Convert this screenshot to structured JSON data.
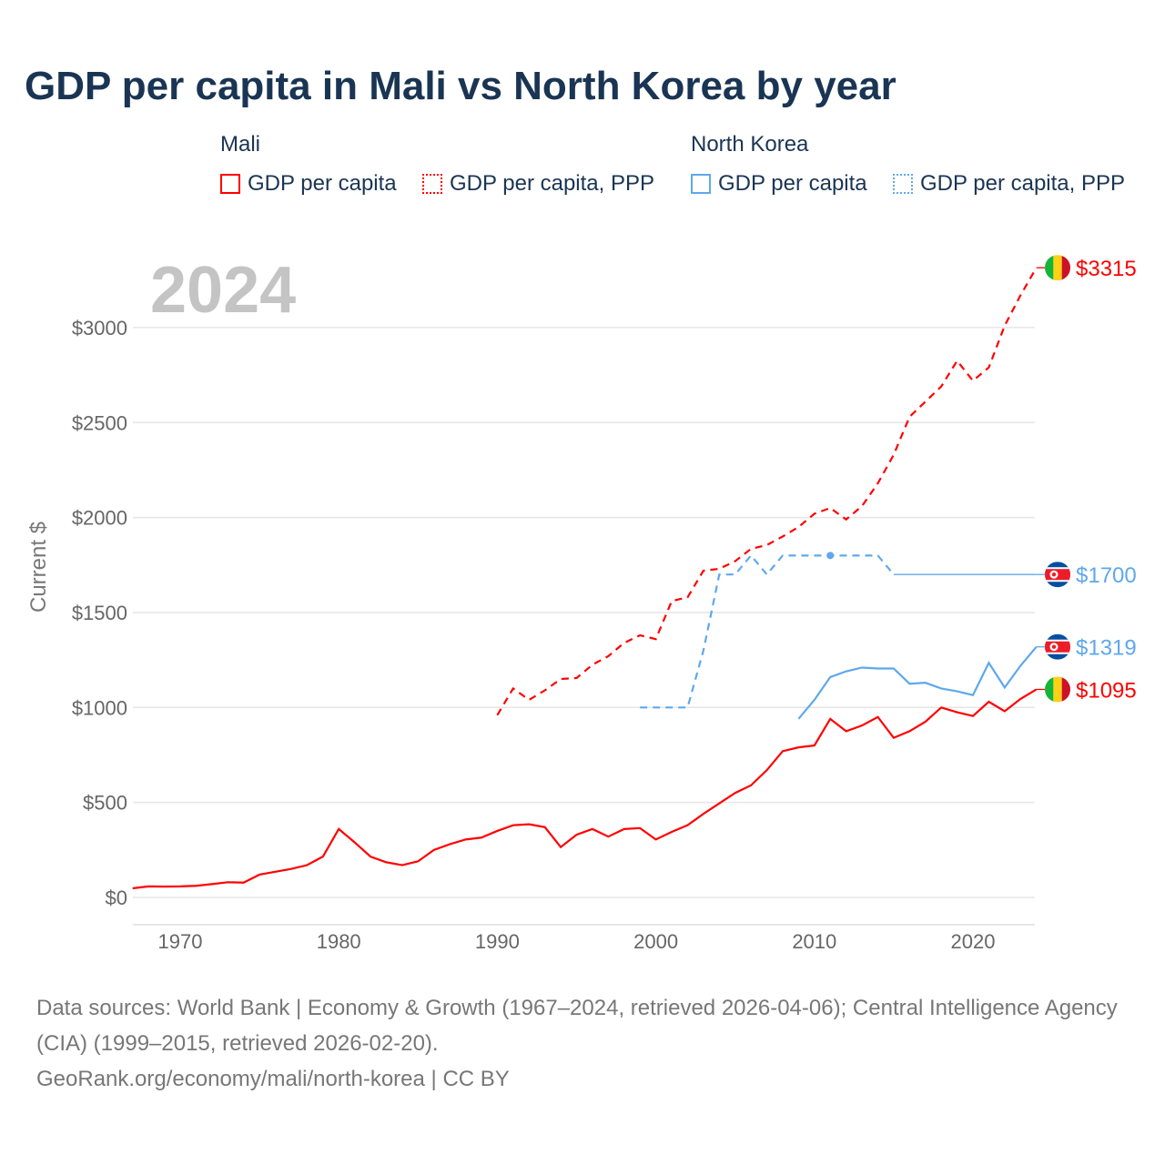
{
  "title": "GDP per capita in Mali vs North Korea by year",
  "legend": {
    "groups": [
      {
        "name": "Mali",
        "items": [
          "GDP per capita",
          "GDP per capita, PPP"
        ],
        "color": "#ff0000"
      },
      {
        "name": "North Korea",
        "items": [
          "GDP per capita",
          "GDP per capita, PPP"
        ],
        "color": "#5ea8ec"
      }
    ]
  },
  "chart_data": {
    "type": "line",
    "title": "GDP per capita in Mali vs North Korea by year",
    "year_label": "2024",
    "ylabel": "Current $",
    "xlim": [
      1967,
      2024
    ],
    "ylim": [
      -130,
      3400
    ],
    "x_ticks": [
      1970,
      1980,
      1990,
      2000,
      2010,
      2020
    ],
    "y_ticks": [
      {
        "v": 0,
        "label": "$0"
      },
      {
        "v": 500,
        "label": "$500"
      },
      {
        "v": 1000,
        "label": "$1000"
      },
      {
        "v": 1500,
        "label": "$1500"
      },
      {
        "v": 2000,
        "label": "$2000"
      },
      {
        "v": 2500,
        "label": "$2500"
      },
      {
        "v": 3000,
        "label": "$3000"
      }
    ],
    "series": [
      {
        "name": "Mali GDP per capita",
        "color": "#ff0000",
        "dash": "",
        "flag": "mali",
        "end_label": "$1095",
        "x": [
          1967,
          1968,
          1969,
          1970,
          1971,
          1972,
          1973,
          1974,
          1975,
          1976,
          1977,
          1978,
          1979,
          1980,
          1981,
          1982,
          1983,
          1984,
          1985,
          1986,
          1987,
          1988,
          1989,
          1990,
          1991,
          1992,
          1993,
          1994,
          1995,
          1996,
          1997,
          1998,
          1999,
          2000,
          2001,
          2002,
          2003,
          2004,
          2005,
          2006,
          2007,
          2008,
          2009,
          2010,
          2011,
          2012,
          2013,
          2014,
          2015,
          2016,
          2017,
          2018,
          2019,
          2020,
          2021,
          2022,
          2023,
          2024
        ],
        "y": [
          48,
          58,
          57,
          58,
          61,
          70,
          80,
          78,
          120,
          135,
          150,
          170,
          215,
          360,
          290,
          215,
          185,
          170,
          190,
          250,
          280,
          305,
          315,
          350,
          380,
          385,
          370,
          265,
          330,
          360,
          320,
          360,
          365,
          305,
          345,
          380,
          440,
          495,
          550,
          590,
          670,
          770,
          790,
          800,
          940,
          875,
          905,
          950,
          840,
          875,
          925,
          1000,
          975,
          955,
          1030,
          980,
          1045,
          1095
        ]
      },
      {
        "name": "Mali GDP per capita, PPP",
        "color": "#ff0000",
        "dash": "8,6",
        "flag": "mali",
        "end_label": "$3315",
        "x": [
          1990,
          1991,
          1992,
          1993,
          1994,
          1995,
          1996,
          1997,
          1998,
          1999,
          2000,
          2001,
          2002,
          2003,
          2004,
          2005,
          2006,
          2007,
          2008,
          2009,
          2010,
          2011,
          2012,
          2013,
          2014,
          2015,
          2016,
          2017,
          2018,
          2019,
          2020,
          2021,
          2022,
          2023,
          2024
        ],
        "y": [
          960,
          1100,
          1040,
          1090,
          1150,
          1155,
          1225,
          1270,
          1340,
          1380,
          1360,
          1560,
          1580,
          1720,
          1730,
          1770,
          1835,
          1855,
          1900,
          1950,
          2020,
          2050,
          1990,
          2060,
          2180,
          2330,
          2530,
          2610,
          2690,
          2825,
          2720,
          2790,
          3010,
          3170,
          3315
        ]
      },
      {
        "name": "North Korea GDP per capita",
        "color": "#5ea8ec",
        "dash": "",
        "flag": "nk",
        "end_label": "$1319",
        "x": [
          2009,
          2010,
          2011,
          2012,
          2013,
          2014,
          2015,
          2016,
          2017,
          2018,
          2019,
          2020,
          2021,
          2022,
          2023,
          2024
        ],
        "y": [
          940,
          1040,
          1160,
          1190,
          1210,
          1205,
          1205,
          1125,
          1130,
          1100,
          1085,
          1065,
          1235,
          1105,
          1220,
          1319
        ]
      },
      {
        "name": "North Korea GDP per capita, PPP",
        "color": "#5ea8ec",
        "dash": "8,6",
        "flag": "nk",
        "end_label": "$1700",
        "carry_forward_to": 2024,
        "x": [
          1999,
          2000,
          2001,
          2002,
          2003,
          2004,
          2005,
          2006,
          2007,
          2008,
          2009,
          2010,
          2011,
          2012,
          2013,
          2014,
          2015
        ],
        "y": [
          1000,
          1000,
          1000,
          1000,
          1300,
          1700,
          1700,
          1800,
          1700,
          1800,
          1800,
          1800,
          1800,
          1800,
          1800,
          1800,
          1700
        ],
        "marker_x": 2011
      }
    ]
  },
  "footer": {
    "sources": "Data sources: World Bank | Economy & Growth (1967–2024, retrieved 2026-04-06); Central Intelligence Agency (CIA) (1999–2015, retrieved 2026-02-20).",
    "link": "GeoRank.org/economy/mali/north-korea | CC BY"
  }
}
